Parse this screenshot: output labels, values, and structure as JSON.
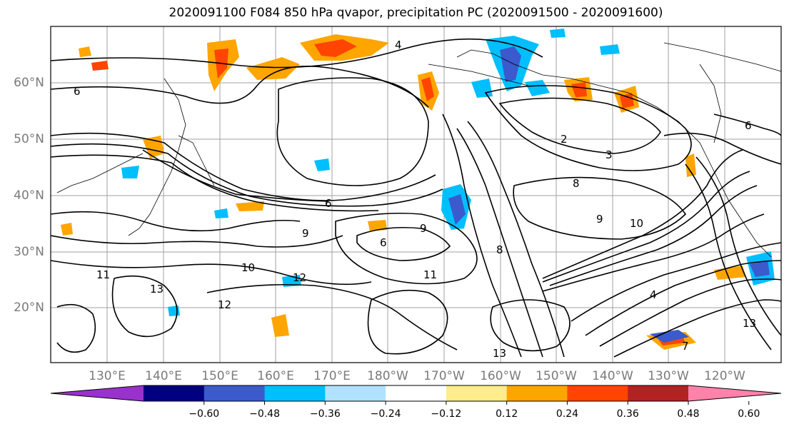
{
  "title": "2020091100 F084 850 hPa qvapor, precipitation PC (2020091500 - 2020091600)",
  "latitude_labels": [
    "20°N",
    "30°N",
    "40°N",
    "50°N",
    "60°N"
  ],
  "longitude_labels": [
    "130°E",
    "140°E",
    "150°E",
    "160°E",
    "170°E",
    "180°W",
    "170°W",
    "160°W",
    "150°W",
    "140°W",
    "130°W",
    "120°W"
  ],
  "colorbar": {
    "colors": [
      "#9932cc",
      "#000080",
      "#3a5acd",
      "#00bfff",
      "#b0e2ff",
      "#ffffff",
      "#ffec8b",
      "#ffa500",
      "#ff4500",
      "#b22222",
      "#ff82ab"
    ],
    "tick_labels": [
      "−0.60",
      "−0.48",
      "−0.36",
      "−0.24",
      "−0.12",
      "0.12",
      "0.24",
      "0.36",
      "0.48",
      "0.60"
    ]
  },
  "contour_labels": [
    "4",
    "6",
    "6",
    "6",
    "2",
    "3",
    "8",
    "9",
    "10",
    "11",
    "12",
    "13",
    "13",
    "12",
    "11",
    "10",
    "9",
    "8",
    "7",
    "4",
    "13",
    "9",
    "6"
  ]
}
